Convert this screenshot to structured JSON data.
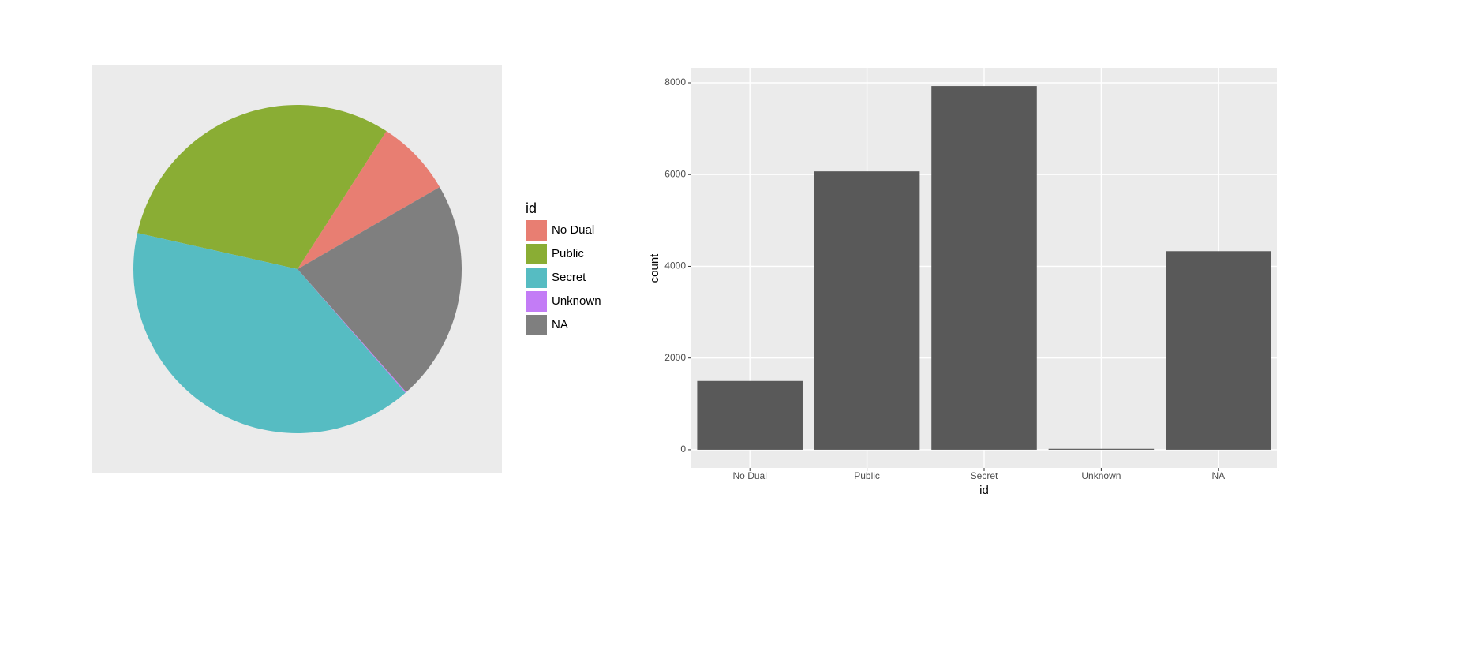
{
  "chart_data": [
    {
      "type": "pie",
      "legend_title": "id",
      "categories": [
        "No Dual",
        "Public",
        "Secret",
        "Unknown",
        "NA"
      ],
      "values": [
        1500,
        6070,
        7930,
        20,
        4330
      ],
      "colors": [
        "#e87e72",
        "#8aad34",
        "#56bcc2",
        "#c37cf6",
        "#7f7f7f"
      ]
    },
    {
      "type": "bar",
      "xlabel": "id",
      "ylabel": "count",
      "categories": [
        "No Dual",
        "Public",
        "Secret",
        "Unknown",
        "NA"
      ],
      "values": [
        1500,
        6070,
        7930,
        20,
        4330
      ],
      "color": "#595959",
      "ylim": [
        -397,
        8327
      ],
      "yticks": [
        0,
        2000,
        4000,
        6000,
        8000
      ],
      "grid": true
    }
  ]
}
